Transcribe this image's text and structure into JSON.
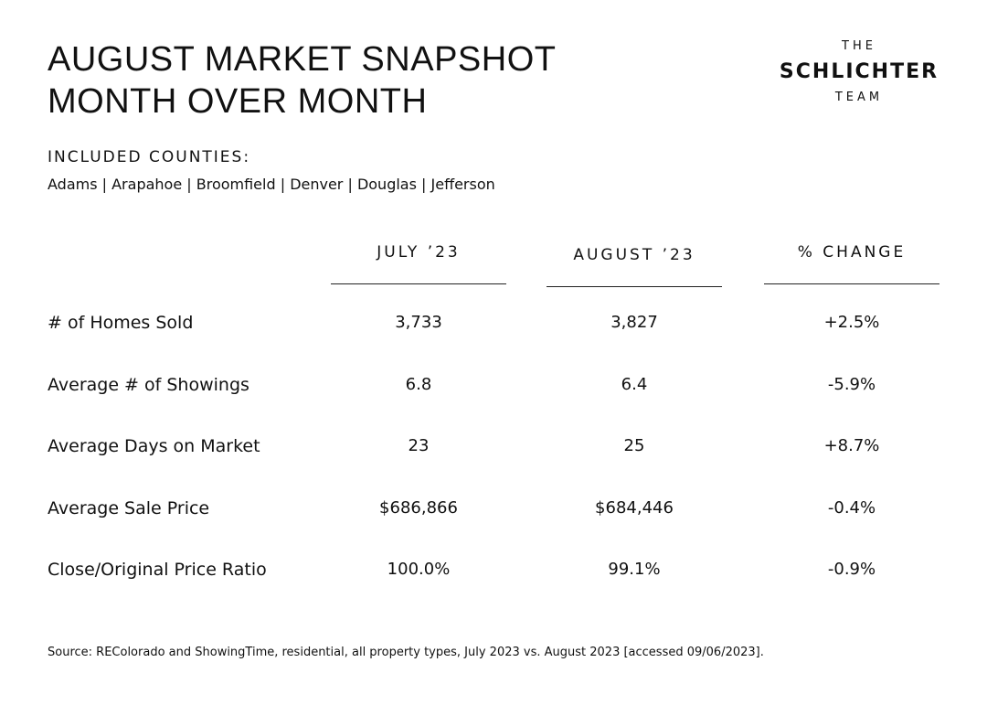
{
  "header": {
    "title_lines": [
      "AUGUST MARKET SNAPSHOT",
      "MONTH OVER MONTH"
    ],
    "logo": [
      "THE",
      "SCHLICHTER",
      "TEAM"
    ]
  },
  "counties": {
    "heading": "INCLUDED COUNTIES:",
    "list": "Adams | Arapahoe | Broomfield | Denver | Douglas | Jefferson"
  },
  "table": {
    "columns": [
      "JULY ’23",
      "AUGUST ’23",
      "% CHANGE"
    ],
    "rows": [
      [
        "# of Homes Sold",
        "3,733",
        "3,827",
        "+2.5%"
      ],
      [
        "Average # of Showings",
        "6.8",
        "6.4",
        "-5.9%"
      ],
      [
        "Average Days on Market",
        "23",
        "25",
        "+8.7%"
      ],
      [
        "Average Sale Price",
        "$686,866",
        "$684,446",
        "-0.4%"
      ],
      [
        "Close/Original Price Ratio",
        "100.0%",
        "99.1%",
        "-0.9%"
      ]
    ]
  },
  "footer": {
    "source": "Source: REColorado and ShowingTime, residential, all property types, July 2023 vs. August 2023 [accessed 09/06/2023]."
  }
}
